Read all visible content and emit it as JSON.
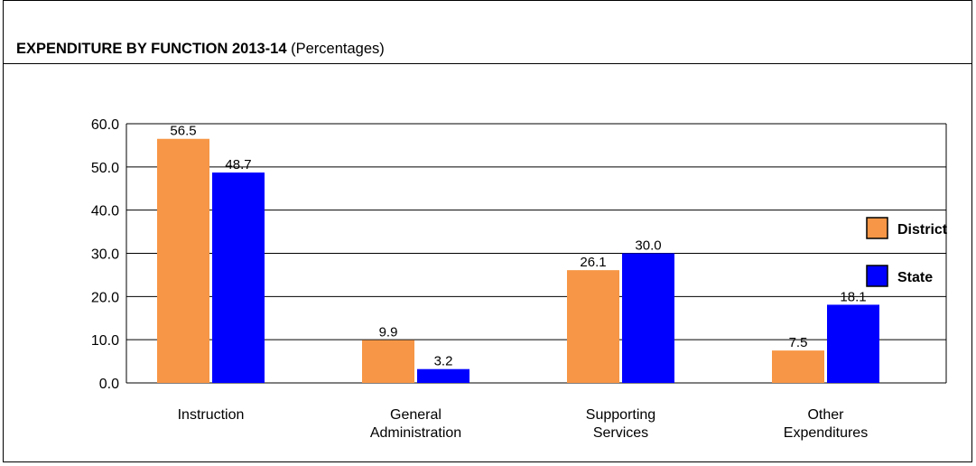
{
  "title": {
    "main": "EXPENDITURE BY FUNCTION 2013-14",
    "sub": "(Percentages)"
  },
  "chart_data": {
    "type": "bar",
    "title": "EXPENDITURE BY FUNCTION 2013-14 (Percentages)",
    "categories": [
      [
        "Instruction"
      ],
      [
        "General",
        "Administration"
      ],
      [
        "Supporting",
        "Services"
      ],
      [
        "Other",
        "Expenditures"
      ]
    ],
    "series": [
      {
        "name": "District",
        "color": "#f79646",
        "values": [
          56.5,
          9.9,
          26.1,
          7.5
        ]
      },
      {
        "name": "State",
        "color": "#0000ff",
        "values": [
          48.7,
          3.2,
          30.0,
          18.1
        ]
      }
    ],
    "ylim": [
      0,
      60
    ],
    "yticks": [
      "0.0",
      "10.0",
      "20.0",
      "30.0",
      "40.0",
      "50.0",
      "60.0"
    ],
    "grid": true,
    "legend": "right",
    "xlabel": "",
    "ylabel": ""
  }
}
